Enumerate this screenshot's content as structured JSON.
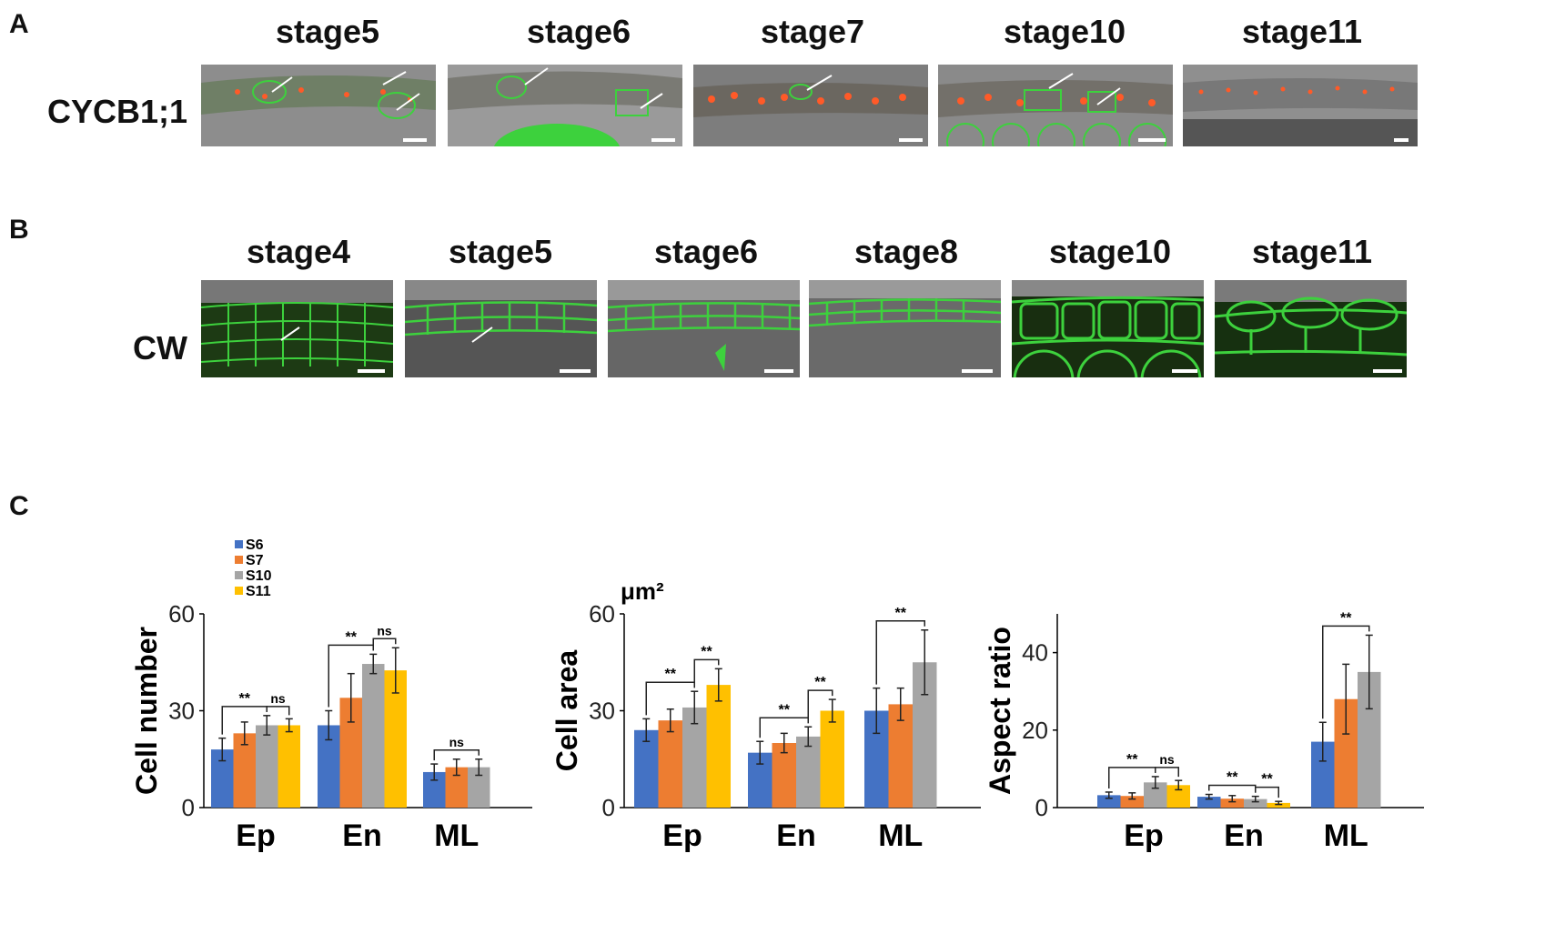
{
  "panels": {
    "a": {
      "letter": "A",
      "row_label": "CYCB1;1",
      "stages": [
        "stage5",
        "stage6",
        "stage7",
        "stage10",
        "stage11"
      ]
    },
    "b": {
      "letter": "B",
      "row_label": "CW",
      "stages": [
        "stage4",
        "stage5",
        "stage6",
        "stage8",
        "stage10",
        "stage11"
      ]
    },
    "c": {
      "letter": "C"
    }
  },
  "colors": {
    "S6": "#4472c4",
    "S7": "#ed7d31",
    "S10": "#a5a5a5",
    "S11": "#ffc000",
    "gfp": "#3dd13d",
    "rfp": "#ff5a28"
  },
  "chart_data": [
    {
      "type": "bar",
      "categories": [
        "Ep",
        "En",
        "ML"
      ],
      "ylabel": "Cell number",
      "ylim": [
        0,
        60
      ],
      "yticks": [
        0,
        30,
        60
      ],
      "legend": [
        "S6",
        "S7",
        "S10",
        "S11"
      ],
      "series": [
        {
          "name": "S6",
          "values": [
            18,
            25.5,
            11
          ],
          "errors": [
            3.5,
            4.5,
            2.5
          ]
        },
        {
          "name": "S7",
          "values": [
            23,
            34,
            12.5
          ],
          "errors": [
            3.5,
            7.5,
            2.5
          ]
        },
        {
          "name": "S10",
          "values": [
            25.5,
            44.5,
            12.5
          ],
          "errors": [
            3,
            3,
            2.5
          ]
        },
        {
          "name": "S11",
          "values": [
            25.5,
            42.5,
            null
          ],
          "errors": [
            2,
            7,
            null
          ]
        }
      ],
      "annotations": [
        {
          "cat": 0,
          "from": 0,
          "to": 2,
          "label": "**"
        },
        {
          "cat": 0,
          "from": 2,
          "to": 3,
          "label": "ns"
        },
        {
          "cat": 1,
          "from": 0,
          "to": 2,
          "label": "**"
        },
        {
          "cat": 1,
          "from": 2,
          "to": 3,
          "label": "ns"
        },
        {
          "cat": 2,
          "from": 0,
          "to": 2,
          "label": "ns"
        }
      ]
    },
    {
      "type": "bar",
      "categories": [
        "Ep",
        "En",
        "ML"
      ],
      "ylabel": "Cell area",
      "unit": "μm²",
      "ylim": [
        0,
        60
      ],
      "yticks": [
        0,
        30,
        60
      ],
      "series": [
        {
          "name": "S6",
          "values": [
            24,
            17,
            30
          ],
          "errors": [
            3.5,
            3.5,
            7
          ]
        },
        {
          "name": "S7",
          "values": [
            27,
            20,
            32
          ],
          "errors": [
            3.5,
            3,
            5
          ]
        },
        {
          "name": "S10",
          "values": [
            31,
            22,
            45
          ],
          "errors": [
            5,
            3,
            10
          ]
        },
        {
          "name": "S11",
          "values": [
            38,
            30,
            null
          ],
          "errors": [
            5,
            3.5,
            null
          ]
        }
      ],
      "annotations": [
        {
          "cat": 0,
          "from": 0,
          "to": 2,
          "label": "**"
        },
        {
          "cat": 0,
          "from": 2,
          "to": 3,
          "label": "**"
        },
        {
          "cat": 1,
          "from": 0,
          "to": 2,
          "label": "**"
        },
        {
          "cat": 1,
          "from": 2,
          "to": 3,
          "label": "**"
        },
        {
          "cat": 2,
          "from": 0,
          "to": 2,
          "label": "**"
        }
      ]
    },
    {
      "type": "bar",
      "categories": [
        "Ep",
        "En",
        "ML"
      ],
      "ylabel": "Aspect ratio",
      "ylim": [
        0,
        50
      ],
      "yticks": [
        0,
        20,
        40
      ],
      "series": [
        {
          "name": "S6",
          "values": [
            3.2,
            2.8,
            17
          ],
          "errors": [
            0.8,
            0.6,
            5
          ]
        },
        {
          "name": "S7",
          "values": [
            3,
            2.3,
            28
          ],
          "errors": [
            0.8,
            0.8,
            9
          ]
        },
        {
          "name": "S10",
          "values": [
            6.5,
            2.2,
            35
          ],
          "errors": [
            1.5,
            0.7,
            9.5
          ]
        },
        {
          "name": "S11",
          "values": [
            5.8,
            1.2,
            null
          ],
          "errors": [
            1.2,
            0.4,
            null
          ]
        }
      ],
      "annotations": [
        {
          "cat": 0,
          "from": 0,
          "to": 2,
          "label": "**"
        },
        {
          "cat": 0,
          "from": 2,
          "to": 3,
          "label": "ns"
        },
        {
          "cat": 1,
          "from": 0,
          "to": 2,
          "label": "**"
        },
        {
          "cat": 1,
          "from": 2,
          "to": 3,
          "label": "**"
        },
        {
          "cat": 2,
          "from": 0,
          "to": 2,
          "label": "**"
        }
      ]
    }
  ]
}
